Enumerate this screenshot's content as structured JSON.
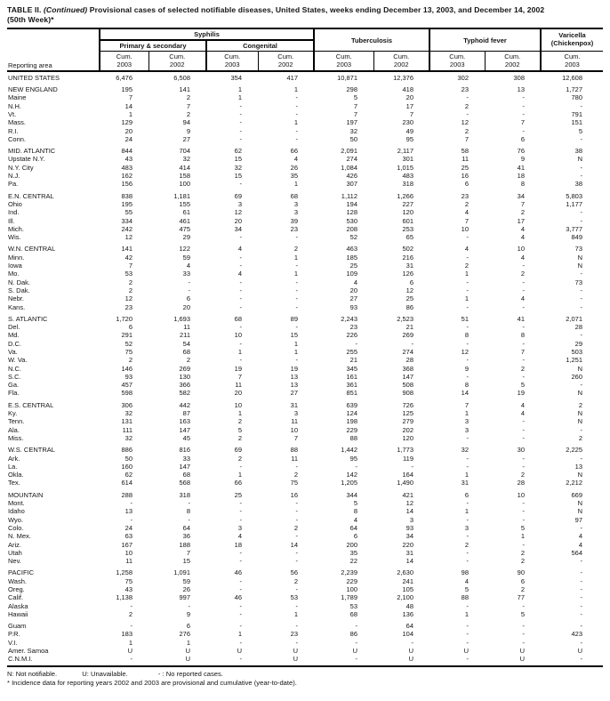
{
  "title": {
    "prefix": "TABLE II.",
    "continued": "(Continued)",
    "rest": "Provisional cases of selected notifiable diseases, United States, weeks ending December 13, 2003, and December 14, 2002",
    "line2": "(50th Week)*"
  },
  "table": {
    "reporting_area_label": "Reporting area",
    "col_groups": {
      "syphilis": "Syphilis",
      "primary_secondary": "Primary & secondary",
      "congenital": "Congenital",
      "tuberculosis": "Tuberculosis",
      "typhoid_fever": "Typhoid fever",
      "varicella_line1": "Varicella",
      "varicella_line2": "(Chickenpox)"
    },
    "col_headers": [
      {
        "l1": "Cum.",
        "l2": "2003"
      },
      {
        "l1": "Cum.",
        "l2": "2002"
      },
      {
        "l1": "Cum.",
        "l2": "2003"
      },
      {
        "l1": "Cum.",
        "l2": "2002"
      },
      {
        "l1": "Cum.",
        "l2": "2003"
      },
      {
        "l1": "Cum.",
        "l2": "2002"
      },
      {
        "l1": "Cum.",
        "l2": "2003"
      },
      {
        "l1": "Cum.",
        "l2": "2002"
      },
      {
        "l1": "Cum.",
        "l2": "2003"
      }
    ],
    "rows": [
      {
        "area": "UNITED STATES",
        "region": true,
        "group": false,
        "values": [
          "6,476",
          "6,508",
          "354",
          "417",
          "10,871",
          "12,376",
          "302",
          "308",
          "12,608"
        ]
      },
      {
        "area": "NEW ENGLAND",
        "region": true,
        "group": true,
        "values": [
          "195",
          "141",
          "1",
          "1",
          "298",
          "418",
          "23",
          "13",
          "1,727"
        ]
      },
      {
        "area": "Maine",
        "region": false,
        "group": false,
        "values": [
          "7",
          "2",
          "1",
          "-",
          "5",
          "20",
          "-",
          "-",
          "780"
        ]
      },
      {
        "area": "N.H.",
        "region": false,
        "group": false,
        "values": [
          "14",
          "7",
          "-",
          "-",
          "7",
          "17",
          "2",
          "-",
          "-"
        ]
      },
      {
        "area": "Vt.",
        "region": false,
        "group": false,
        "values": [
          "1",
          "2",
          "-",
          "-",
          "7",
          "7",
          "-",
          "-",
          "791"
        ]
      },
      {
        "area": "Mass.",
        "region": false,
        "group": false,
        "values": [
          "129",
          "94",
          "-",
          "1",
          "197",
          "230",
          "12",
          "7",
          "151"
        ]
      },
      {
        "area": "R.I.",
        "region": false,
        "group": false,
        "values": [
          "20",
          "9",
          "-",
          "-",
          "32",
          "49",
          "2",
          "-",
          "5"
        ]
      },
      {
        "area": "Conn.",
        "region": false,
        "group": false,
        "values": [
          "24",
          "27",
          "-",
          "-",
          "50",
          "95",
          "7",
          "6",
          "-"
        ]
      },
      {
        "area": "MID. ATLANTIC",
        "region": true,
        "group": true,
        "values": [
          "844",
          "704",
          "62",
          "66",
          "2,091",
          "2,117",
          "58",
          "76",
          "38"
        ]
      },
      {
        "area": "Upstate N.Y.",
        "region": false,
        "group": false,
        "values": [
          "43",
          "32",
          "15",
          "4",
          "274",
          "301",
          "11",
          "9",
          "N"
        ]
      },
      {
        "area": "N.Y. City",
        "region": false,
        "group": false,
        "values": [
          "483",
          "414",
          "32",
          "26",
          "1,084",
          "1,015",
          "25",
          "41",
          "-"
        ]
      },
      {
        "area": "N.J.",
        "region": false,
        "group": false,
        "values": [
          "162",
          "158",
          "15",
          "35",
          "426",
          "483",
          "16",
          "18",
          "-"
        ]
      },
      {
        "area": "Pa.",
        "region": false,
        "group": false,
        "values": [
          "156",
          "100",
          "-",
          "1",
          "307",
          "318",
          "6",
          "8",
          "38"
        ]
      },
      {
        "area": "E.N. CENTRAL",
        "region": true,
        "group": true,
        "values": [
          "838",
          "1,181",
          "69",
          "68",
          "1,112",
          "1,266",
          "23",
          "34",
          "5,803"
        ]
      },
      {
        "area": "Ohio",
        "region": false,
        "group": false,
        "values": [
          "195",
          "155",
          "3",
          "3",
          "194",
          "227",
          "2",
          "7",
          "1,177"
        ]
      },
      {
        "area": "Ind.",
        "region": false,
        "group": false,
        "values": [
          "55",
          "61",
          "12",
          "3",
          "128",
          "120",
          "4",
          "2",
          "-"
        ]
      },
      {
        "area": "Ill.",
        "region": false,
        "group": false,
        "values": [
          "334",
          "461",
          "20",
          "39",
          "530",
          "601",
          "7",
          "17",
          "-"
        ]
      },
      {
        "area": "Mich.",
        "region": false,
        "group": false,
        "values": [
          "242",
          "475",
          "34",
          "23",
          "208",
          "253",
          "10",
          "4",
          "3,777"
        ]
      },
      {
        "area": "Wis.",
        "region": false,
        "group": false,
        "values": [
          "12",
          "29",
          "-",
          "-",
          "52",
          "65",
          "-",
          "4",
          "849"
        ]
      },
      {
        "area": "W.N. CENTRAL",
        "region": true,
        "group": true,
        "values": [
          "141",
          "122",
          "4",
          "2",
          "463",
          "502",
          "4",
          "10",
          "73"
        ]
      },
      {
        "area": "Minn.",
        "region": false,
        "group": false,
        "values": [
          "42",
          "59",
          "-",
          "1",
          "185",
          "216",
          "-",
          "4",
          "N"
        ]
      },
      {
        "area": "Iowa",
        "region": false,
        "group": false,
        "values": [
          "7",
          "4",
          "-",
          "-",
          "25",
          "31",
          "2",
          "-",
          "N"
        ]
      },
      {
        "area": "Mo.",
        "region": false,
        "group": false,
        "values": [
          "53",
          "33",
          "4",
          "1",
          "109",
          "126",
          "1",
          "2",
          "-"
        ]
      },
      {
        "area": "N. Dak.",
        "region": false,
        "group": false,
        "values": [
          "2",
          "-",
          "-",
          "-",
          "4",
          "6",
          "-",
          "-",
          "73"
        ]
      },
      {
        "area": "S. Dak.",
        "region": false,
        "group": false,
        "values": [
          "2",
          "-",
          "-",
          "-",
          "20",
          "12",
          "-",
          "-",
          "-"
        ]
      },
      {
        "area": "Nebr.",
        "region": false,
        "group": false,
        "values": [
          "12",
          "6",
          "-",
          "-",
          "27",
          "25",
          "1",
          "4",
          "-"
        ]
      },
      {
        "area": "Kans.",
        "region": false,
        "group": false,
        "values": [
          "23",
          "20",
          "-",
          "-",
          "93",
          "86",
          "-",
          "-",
          "-"
        ]
      },
      {
        "area": "S. ATLANTIC",
        "region": true,
        "group": true,
        "values": [
          "1,720",
          "1,693",
          "68",
          "89",
          "2,243",
          "2,523",
          "51",
          "41",
          "2,071"
        ]
      },
      {
        "area": "Del.",
        "region": false,
        "group": false,
        "values": [
          "6",
          "11",
          "-",
          "-",
          "23",
          "21",
          "-",
          "-",
          "28"
        ]
      },
      {
        "area": "Md.",
        "region": false,
        "group": false,
        "values": [
          "291",
          "211",
          "10",
          "15",
          "226",
          "269",
          "8",
          "8",
          "-"
        ]
      },
      {
        "area": "D.C.",
        "region": false,
        "group": false,
        "values": [
          "52",
          "54",
          "-",
          "1",
          "-",
          "-",
          "-",
          "-",
          "29"
        ]
      },
      {
        "area": "Va.",
        "region": false,
        "group": false,
        "values": [
          "75",
          "68",
          "1",
          "1",
          "255",
          "274",
          "12",
          "7",
          "503"
        ]
      },
      {
        "area": "W. Va.",
        "region": false,
        "group": false,
        "values": [
          "2",
          "2",
          "-",
          "-",
          "21",
          "28",
          "-",
          "-",
          "1,251"
        ]
      },
      {
        "area": "N.C.",
        "region": false,
        "group": false,
        "values": [
          "146",
          "269",
          "19",
          "19",
          "345",
          "368",
          "9",
          "2",
          "N"
        ]
      },
      {
        "area": "S.C.",
        "region": false,
        "group": false,
        "values": [
          "93",
          "130",
          "7",
          "13",
          "161",
          "147",
          "-",
          "-",
          "260"
        ]
      },
      {
        "area": "Ga.",
        "region": false,
        "group": false,
        "values": [
          "457",
          "366",
          "11",
          "13",
          "361",
          "508",
          "8",
          "5",
          "-"
        ]
      },
      {
        "area": "Fla.",
        "region": false,
        "group": false,
        "values": [
          "598",
          "582",
          "20",
          "27",
          "851",
          "908",
          "14",
          "19",
          "N"
        ]
      },
      {
        "area": "E.S. CENTRAL",
        "region": true,
        "group": true,
        "values": [
          "306",
          "442",
          "10",
          "31",
          "639",
          "726",
          "7",
          "4",
          "2"
        ]
      },
      {
        "area": "Ky.",
        "region": false,
        "group": false,
        "values": [
          "32",
          "87",
          "1",
          "3",
          "124",
          "125",
          "1",
          "4",
          "N"
        ]
      },
      {
        "area": "Tenn.",
        "region": false,
        "group": false,
        "values": [
          "131",
          "163",
          "2",
          "11",
          "198",
          "279",
          "3",
          "-",
          "N"
        ]
      },
      {
        "area": "Ala.",
        "region": false,
        "group": false,
        "values": [
          "111",
          "147",
          "5",
          "10",
          "229",
          "202",
          "3",
          "-",
          "-"
        ]
      },
      {
        "area": "Miss.",
        "region": false,
        "group": false,
        "values": [
          "32",
          "45",
          "2",
          "7",
          "88",
          "120",
          "-",
          "-",
          "2"
        ]
      },
      {
        "area": "W.S. CENTRAL",
        "region": true,
        "group": true,
        "values": [
          "886",
          "816",
          "69",
          "88",
          "1,442",
          "1,773",
          "32",
          "30",
          "2,225"
        ]
      },
      {
        "area": "Ark.",
        "region": false,
        "group": false,
        "values": [
          "50",
          "33",
          "2",
          "11",
          "95",
          "119",
          "-",
          "-",
          "-"
        ]
      },
      {
        "area": "La.",
        "region": false,
        "group": false,
        "values": [
          "160",
          "147",
          "-",
          "-",
          "-",
          "-",
          "-",
          "-",
          "13"
        ]
      },
      {
        "area": "Okla.",
        "region": false,
        "group": false,
        "values": [
          "62",
          "68",
          "1",
          "2",
          "142",
          "164",
          "1",
          "2",
          "N"
        ]
      },
      {
        "area": "Tex.",
        "region": false,
        "group": false,
        "values": [
          "614",
          "568",
          "66",
          "75",
          "1,205",
          "1,490",
          "31",
          "28",
          "2,212"
        ]
      },
      {
        "area": "MOUNTAIN",
        "region": true,
        "group": true,
        "values": [
          "288",
          "318",
          "25",
          "16",
          "344",
          "421",
          "6",
          "10",
          "669"
        ]
      },
      {
        "area": "Mont.",
        "region": false,
        "group": false,
        "values": [
          "-",
          "-",
          "-",
          "-",
          "5",
          "12",
          "-",
          "-",
          "N"
        ]
      },
      {
        "area": "Idaho",
        "region": false,
        "group": false,
        "values": [
          "13",
          "8",
          "-",
          "-",
          "8",
          "14",
          "1",
          "-",
          "N"
        ]
      },
      {
        "area": "Wyo.",
        "region": false,
        "group": false,
        "values": [
          "-",
          "-",
          "-",
          "-",
          "4",
          "3",
          "-",
          "-",
          "97"
        ]
      },
      {
        "area": "Colo.",
        "region": false,
        "group": false,
        "values": [
          "24",
          "64",
          "3",
          "2",
          "64",
          "93",
          "3",
          "5",
          "-"
        ]
      },
      {
        "area": "N. Mex.",
        "region": false,
        "group": false,
        "values": [
          "63",
          "36",
          "4",
          "-",
          "6",
          "34",
          "-",
          "1",
          "4"
        ]
      },
      {
        "area": "Ariz.",
        "region": false,
        "group": false,
        "values": [
          "167",
          "188",
          "18",
          "14",
          "200",
          "220",
          "2",
          "-",
          "4"
        ]
      },
      {
        "area": "Utah",
        "region": false,
        "group": false,
        "values": [
          "10",
          "7",
          "-",
          "-",
          "35",
          "31",
          "-",
          "2",
          "564"
        ]
      },
      {
        "area": "Nev.",
        "region": false,
        "group": false,
        "values": [
          "11",
          "15",
          "-",
          "-",
          "22",
          "14",
          "-",
          "2",
          "-"
        ]
      },
      {
        "area": "PACIFIC",
        "region": true,
        "group": true,
        "values": [
          "1,258",
          "1,091",
          "46",
          "56",
          "2,239",
          "2,630",
          "98",
          "90",
          "-"
        ]
      },
      {
        "area": "Wash.",
        "region": false,
        "group": false,
        "values": [
          "75",
          "59",
          "-",
          "2",
          "229",
          "241",
          "4",
          "6",
          "-"
        ]
      },
      {
        "area": "Oreg.",
        "region": false,
        "group": false,
        "values": [
          "43",
          "26",
          "-",
          "-",
          "100",
          "105",
          "5",
          "2",
          "-"
        ]
      },
      {
        "area": "Calif.",
        "region": false,
        "group": false,
        "values": [
          "1,138",
          "997",
          "46",
          "53",
          "1,789",
          "2,100",
          "88",
          "77",
          "-"
        ]
      },
      {
        "area": "Alaska",
        "region": false,
        "group": false,
        "values": [
          "-",
          "-",
          "-",
          "-",
          "53",
          "48",
          "-",
          "-",
          "-"
        ]
      },
      {
        "area": "Hawaii",
        "region": false,
        "group": false,
        "values": [
          "2",
          "9",
          "-",
          "1",
          "68",
          "136",
          "1",
          "5",
          "-"
        ]
      },
      {
        "area": "Guam",
        "region": false,
        "group": true,
        "values": [
          "-",
          "6",
          "-",
          "-",
          "-",
          "64",
          "-",
          "-",
          "-"
        ]
      },
      {
        "area": "P.R.",
        "region": false,
        "group": false,
        "values": [
          "183",
          "276",
          "1",
          "23",
          "86",
          "104",
          "-",
          "-",
          "423"
        ]
      },
      {
        "area": "V.I.",
        "region": false,
        "group": false,
        "values": [
          "1",
          "1",
          "-",
          "-",
          "-",
          "-",
          "-",
          "-",
          "-"
        ]
      },
      {
        "area": "Amer. Samoa",
        "region": false,
        "group": false,
        "values": [
          "U",
          "U",
          "U",
          "U",
          "U",
          "U",
          "U",
          "U",
          "U"
        ]
      },
      {
        "area": "C.N.M.I.",
        "region": false,
        "group": false,
        "values": [
          "-",
          "U",
          "-",
          "U",
          "-",
          "U",
          "-",
          "U",
          "-"
        ]
      }
    ]
  },
  "footnotes": {
    "item1": "N: Not notifiable.",
    "item2": "U: Unavailable.",
    "item3": "- : No reported cases.",
    "line2": "* Incidence data for reporting years 2002 and 2003 are provisional and cumulative (year-to-date)."
  }
}
